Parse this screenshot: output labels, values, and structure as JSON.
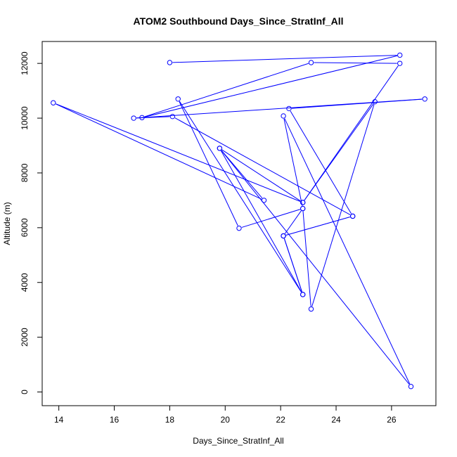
{
  "chart_data": {
    "type": "line",
    "title": "ATOM2 Southbound Days_Since_StratInf_All",
    "xlabel": "Days_Since_StratInf_All",
    "ylabel": "Altitude (m)",
    "xlim": [
      13.4,
      27.6
    ],
    "ylim": [
      -500,
      12800
    ],
    "xticks": [
      14,
      16,
      18,
      20,
      22,
      24,
      26
    ],
    "yticks": [
      0,
      2000,
      4000,
      6000,
      8000,
      10000,
      12000
    ],
    "series": [
      {
        "name": "ATOM2 Southbound",
        "color": "#0000ff",
        "marker": "open-circle",
        "points": [
          {
            "x": 18.0,
            "y": 12030
          },
          {
            "x": 26.3,
            "y": 12300
          },
          {
            "x": 17.0,
            "y": 10020
          },
          {
            "x": 23.1,
            "y": 12030
          },
          {
            "x": 26.3,
            "y": 12000
          },
          {
            "x": 22.8,
            "y": 6920
          },
          {
            "x": 25.4,
            "y": 10600
          },
          {
            "x": 23.1,
            "y": 3030
          },
          {
            "x": 22.8,
            "y": 6700
          },
          {
            "x": 20.5,
            "y": 5980
          },
          {
            "x": 18.3,
            "y": 10700
          },
          {
            "x": 22.8,
            "y": 3560
          },
          {
            "x": 22.1,
            "y": 5700
          },
          {
            "x": 22.8,
            "y": 6700
          },
          {
            "x": 22.1,
            "y": 10080
          },
          {
            "x": 26.7,
            "y": 200
          },
          {
            "x": 19.8,
            "y": 8900
          },
          {
            "x": 22.8,
            "y": 6920
          },
          {
            "x": 13.8,
            "y": 10560
          },
          {
            "x": 21.4,
            "y": 7000
          },
          {
            "x": 19.8,
            "y": 8900
          },
          {
            "x": 22.8,
            "y": 3560
          },
          {
            "x": 22.1,
            "y": 5700
          },
          {
            "x": 24.6,
            "y": 6420
          },
          {
            "x": 22.3,
            "y": 10350
          },
          {
            "x": 27.2,
            "y": 10700
          },
          {
            "x": 16.7,
            "y": 10000
          },
          {
            "x": 18.1,
            "y": 10060
          },
          {
            "x": 24.6,
            "y": 6420
          },
          {
            "x": 22.1,
            "y": 5700
          }
        ]
      }
    ]
  }
}
